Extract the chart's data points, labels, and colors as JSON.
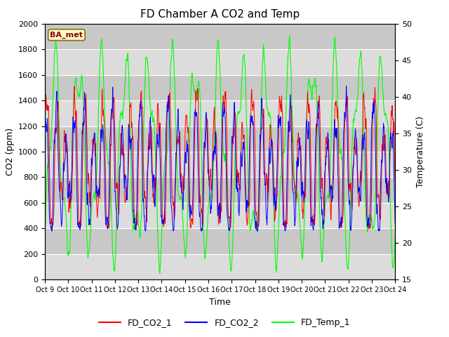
{
  "title": "FD Chamber A CO2 and Temp",
  "xlabel": "Time",
  "ylabel_left": "CO2 (ppm)",
  "ylabel_right": "Temperature (C)",
  "ylim_left": [
    0,
    2000
  ],
  "ylim_right": [
    15,
    50
  ],
  "x_tick_labels": [
    "Oct 9",
    "Oct 10",
    "Oct 11",
    "Oct 12",
    "Oct 13",
    "Oct 14",
    "Oct 15",
    "Oct 16",
    "Oct 17",
    "Oct 18",
    "Oct 19",
    "Oct 20",
    "Oct 21",
    "Oct 22",
    "Oct 23",
    "Oct 24"
  ],
  "legend": [
    "FD_CO2_1",
    "FD_CO2_2",
    "FD_Temp_1"
  ],
  "colors": [
    "red",
    "blue",
    "lime"
  ],
  "annotation_text": "BA_met",
  "annotation_color": "#8B0000",
  "annotation_bg": "#FFFFCC",
  "annotation_edge": "#8B6914",
  "bg_band_light": "#DCDCDC",
  "bg_band_dark": "#C8C8C8",
  "grid_color": "white",
  "n_points": 3000,
  "seed": 42
}
